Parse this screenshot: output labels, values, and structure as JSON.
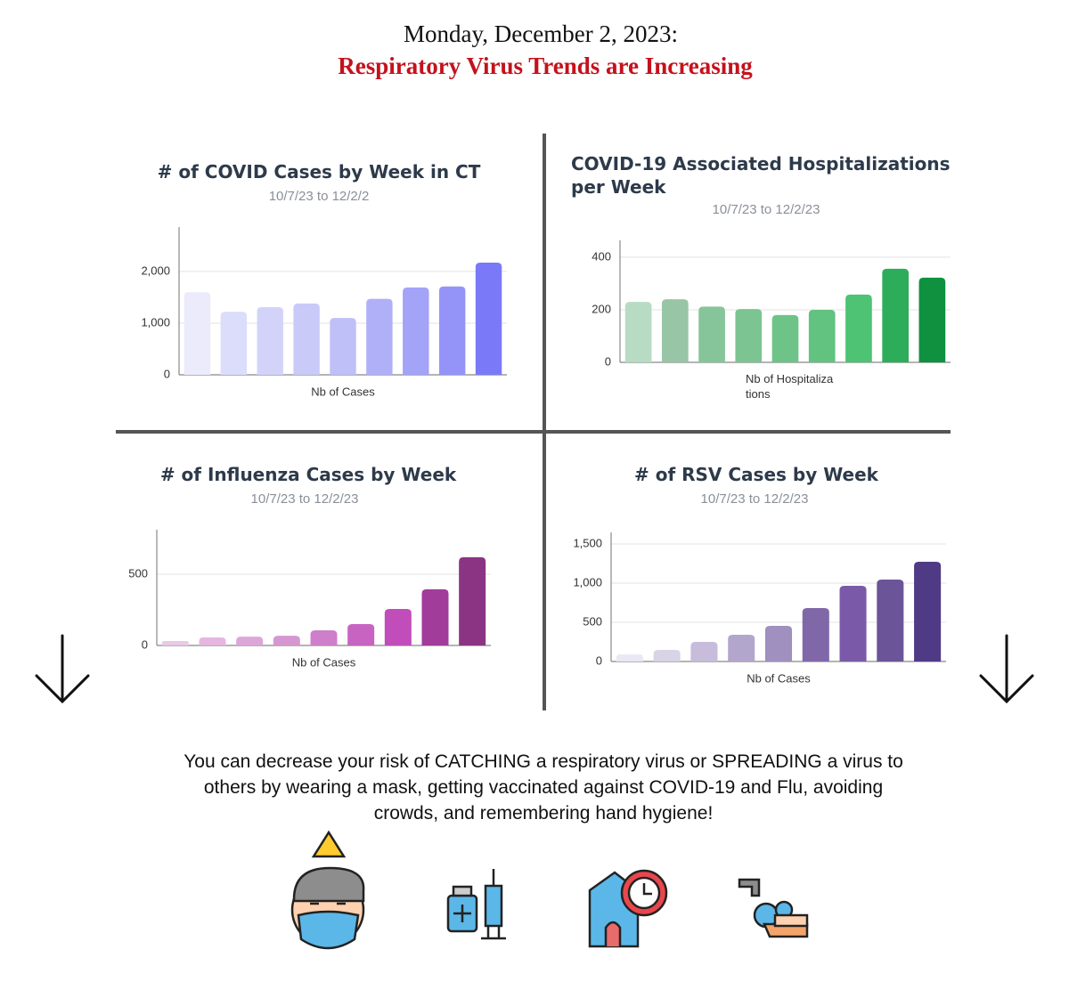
{
  "header": {
    "date": "Monday, December 2, 2023:",
    "headline": "Respiratory Virus Trends are Increasing"
  },
  "chart_data": [
    {
      "type": "bar",
      "title": "# of COVID Cases by Week in CT",
      "subtitle": "10/7/23 to 12/2/2",
      "x_label": "Nb of Cases",
      "categories": [
        null,
        null,
        null,
        null,
        null,
        null,
        null,
        null,
        null
      ],
      "values": [
        1600,
        1220,
        1310,
        1380,
        1100,
        1470,
        1690,
        1710,
        2170
      ],
      "colors": [
        "#ebebfc",
        "#dcdcfb",
        "#d3d3fa",
        "#cacaf9",
        "#c0c0f8",
        "#b0b0f8",
        "#a3a3f8",
        "#9494f8",
        "#7a7af8"
      ],
      "ylim": [
        0,
        2860
      ],
      "yticks": [
        0,
        {
          "value": 1000,
          "label": "1,000"
        },
        {
          "value": 2000,
          "label": "2,000"
        }
      ],
      "grid": true
    },
    {
      "type": "bar",
      "title": "COVID-19 Associated Hospitalizations per Week",
      "subtitle": "10/7/23 to 12/2/23",
      "x_label": "Nb of Hospitalizations",
      "categories": [
        null,
        null,
        null,
        null,
        null,
        null,
        null,
        null,
        null
      ],
      "values": [
        230,
        240,
        212,
        203,
        180,
        200,
        258,
        356,
        322
      ],
      "colors": [
        "#b7dcc3",
        "#98c5a6",
        "#86c59a",
        "#7cc492",
        "#6ec488",
        "#62c27f",
        "#4ec373",
        "#2dad5a",
        "#0f9140"
      ],
      "ylim": [
        0,
        464
      ],
      "yticks": [
        0,
        200,
        400
      ],
      "grid": true
    },
    {
      "type": "bar",
      "title": "# of Influenza Cases by Week",
      "subtitle": "10/7/23 to 12/2/23",
      "x_label": "Nb of Cases",
      "categories": [
        null,
        null,
        null,
        null,
        null,
        null,
        null,
        null,
        null
      ],
      "values": [
        31,
        56,
        62,
        68,
        106,
        150,
        256,
        394,
        619
      ],
      "colors": [
        "#e8c9e6",
        "#e4b6e0",
        "#dda6d8",
        "#d597d2",
        "#cf7ecb",
        "#c764c1",
        "#c04db9",
        "#a13c9b",
        "#8a3483"
      ],
      "ylim": [
        0,
        812
      ],
      "yticks": [
        0,
        500
      ],
      "grid": true
    },
    {
      "type": "bar",
      "title": "# of RSV Cases by Week",
      "subtitle": "10/7/23 to 12/2/23",
      "x_label": "Nb of Cases",
      "categories": [
        null,
        null,
        null,
        null,
        null,
        null,
        null,
        null,
        null
      ],
      "values": [
        91,
        148,
        250,
        341,
        455,
        682,
        966,
        1045,
        1273
      ],
      "colors": [
        "#ebe8f4",
        "#d9d3e6",
        "#c7bcda",
        "#b3a6cc",
        "#9f90c0",
        "#8068a8",
        "#7a5aa8",
        "#6b5598",
        "#4f3a86"
      ],
      "ylim": [
        0,
        1648
      ],
      "yticks": [
        0,
        500,
        {
          "value": 1000,
          "label": "1,000"
        },
        {
          "value": 1500,
          "label": "1,500"
        }
      ],
      "grid": true
    }
  ],
  "footer": "You can decrease your risk of CATCHING a respiratory virus or SPREADING a virus to others by wearing a mask, getting vaccinated against COVID-19 and Flu, avoiding crowds, and remembering hand hygiene!"
}
